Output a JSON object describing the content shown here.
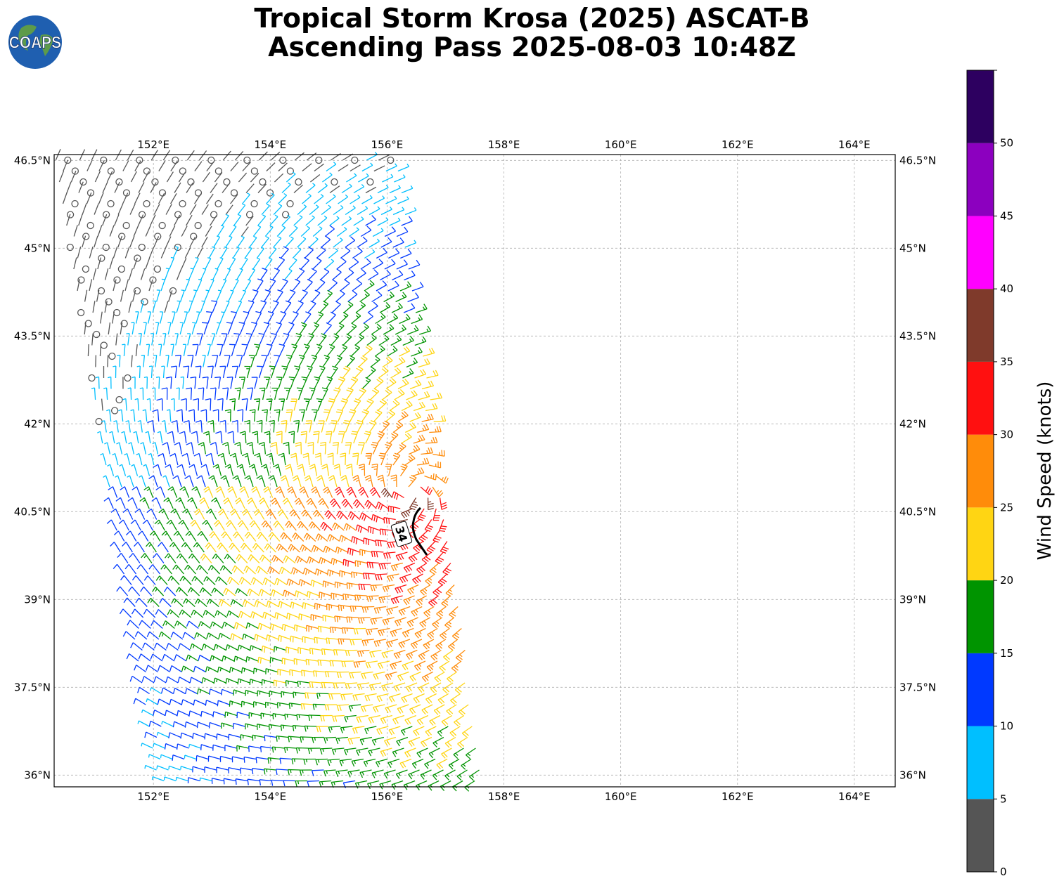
{
  "title": {
    "line1": "Tropical Storm Krosa (2025) ASCAT-B",
    "line2": "Ascending Pass 2025-08-03 10:48Z"
  },
  "logo": {
    "text": "COAPS",
    "icon": "globe-icon"
  },
  "map": {
    "lon_range": [
      150.3,
      164.7
    ],
    "lat_range": [
      35.8,
      46.6
    ],
    "lon_ticks": [
      {
        "value": 152,
        "label": "152°E"
      },
      {
        "value": 154,
        "label": "154°E"
      },
      {
        "value": 156,
        "label": "156°E"
      },
      {
        "value": 158,
        "label": "158°E"
      },
      {
        "value": 160,
        "label": "160°E"
      },
      {
        "value": 162,
        "label": "162°E"
      },
      {
        "value": 164,
        "label": "164°E"
      }
    ],
    "lat_ticks": [
      {
        "value": 46.5,
        "label": "46.5°N"
      },
      {
        "value": 45,
        "label": "45°N"
      },
      {
        "value": 43.5,
        "label": "43.5°N"
      },
      {
        "value": 42,
        "label": "42°N"
      },
      {
        "value": 40.5,
        "label": "40.5°N"
      },
      {
        "value": 39,
        "label": "39°N"
      },
      {
        "value": 37.5,
        "label": "37.5°N"
      },
      {
        "value": 36,
        "label": "36°N"
      }
    ],
    "gridlines": true
  },
  "contour": {
    "label": "34",
    "value_knots": 34
  },
  "colorbar": {
    "label": "Wind Speed (knots)",
    "bins": [
      {
        "from": 0,
        "to": 5,
        "color": "#555555"
      },
      {
        "from": 5,
        "to": 10,
        "color": "#00bfff"
      },
      {
        "from": 10,
        "to": 15,
        "color": "#0039ff"
      },
      {
        "from": 15,
        "to": 20,
        "color": "#009400"
      },
      {
        "from": 20,
        "to": 25,
        "color": "#ffd513"
      },
      {
        "from": 25,
        "to": 30,
        "color": "#ff8c0a"
      },
      {
        "from": 30,
        "to": 35,
        "color": "#ff1010"
      },
      {
        "from": 35,
        "to": 40,
        "color": "#7f3a2b"
      },
      {
        "from": 40,
        "to": 45,
        "color": "#ff00ff"
      },
      {
        "from": 45,
        "to": 50,
        "color": "#8c00bf"
      },
      {
        "from": 50,
        "to": 55,
        "color": "#2d0060"
      }
    ],
    "ticks": [
      "0",
      "5",
      "10",
      "15",
      "20",
      "25",
      "30",
      "35",
      "40",
      "45",
      "50"
    ]
  }
}
